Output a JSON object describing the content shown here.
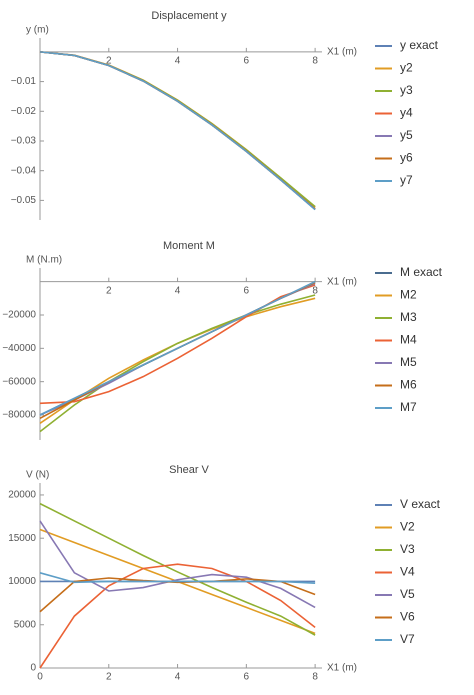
{
  "chart_data": [
    {
      "type": "line",
      "title": "Displacement y",
      "ylabel": "y (m)",
      "xlabel": "X1 (m)",
      "x": [
        0,
        1,
        2,
        3,
        4,
        5,
        6,
        7,
        8
      ],
      "xlim": [
        0,
        8.2
      ],
      "xticks": [
        2,
        4,
        6,
        8
      ],
      "ylim": [
        -0.0566,
        0.004
      ],
      "yticks": [
        {
          "value": -0.01,
          "label": "−0.01"
        },
        {
          "value": -0.02,
          "label": "−0.02"
        },
        {
          "value": -0.03,
          "label": "−0.03"
        },
        {
          "value": -0.04,
          "label": "−0.04"
        },
        {
          "value": -0.05,
          "label": "−0.05"
        }
      ],
      "series": [
        {
          "name": "y exact",
          "color": "#5E81B5",
          "values": [
            0,
            -0.0012,
            -0.0046,
            -0.0098,
            -0.0166,
            -0.0246,
            -0.0335,
            -0.0431,
            -0.053
          ]
        },
        {
          "name": "y2",
          "color": "#E19C24",
          "values": [
            0,
            -0.0011,
            -0.0044,
            -0.0095,
            -0.0162,
            -0.0241,
            -0.0329,
            -0.0425,
            -0.0524
          ]
        },
        {
          "name": "y3",
          "color": "#8FB032",
          "values": [
            0,
            -0.0012,
            -0.0045,
            -0.0096,
            -0.0163,
            -0.0242,
            -0.033,
            -0.0424,
            -0.0521
          ]
        },
        {
          "name": "y4",
          "color": "#EB6235",
          "values": [
            0,
            -0.0012,
            -0.0046,
            -0.0098,
            -0.0166,
            -0.0245,
            -0.0334,
            -0.043,
            -0.0529
          ]
        },
        {
          "name": "y5",
          "color": "#8778B3",
          "values": [
            0,
            -0.0012,
            -0.0046,
            -0.0098,
            -0.0166,
            -0.0246,
            -0.0335,
            -0.0431,
            -0.053
          ]
        },
        {
          "name": "y6",
          "color": "#C56E1A",
          "values": [
            0,
            -0.0012,
            -0.0046,
            -0.0098,
            -0.0166,
            -0.0246,
            -0.0335,
            -0.0431,
            -0.053
          ]
        },
        {
          "name": "y7",
          "color": "#5D9EC7",
          "values": [
            0,
            -0.0012,
            -0.0046,
            -0.0098,
            -0.0166,
            -0.0246,
            -0.0335,
            -0.0431,
            -0.0531
          ]
        }
      ]
    },
    {
      "type": "line",
      "title": "Moment M",
      "ylabel": "M (N.m)",
      "xlabel": "X1 (m)",
      "x": [
        0,
        1,
        2,
        3,
        4,
        5,
        6,
        7,
        8
      ],
      "xlim": [
        0,
        8.2
      ],
      "xticks": [
        2,
        4,
        6,
        8
      ],
      "ylim": [
        -95000,
        7000
      ],
      "yticks": [
        {
          "value": -20000,
          "label": "−20000"
        },
        {
          "value": -40000,
          "label": "−40000"
        },
        {
          "value": -60000,
          "label": "−60000"
        },
        {
          "value": -80000,
          "label": "−80000"
        }
      ],
      "series": [
        {
          "name": "M exact",
          "color": "#4A6C8F",
          "values": [
            -80000,
            -70000,
            -60000,
            -50000,
            -40000,
            -30000,
            -20000,
            -10000,
            0
          ]
        },
        {
          "name": "M2",
          "color": "#E19C24",
          "values": [
            -85000,
            -71000,
            -58000,
            -47000,
            -37000,
            -28500,
            -21000,
            -15000,
            -10000
          ]
        },
        {
          "name": "M3",
          "color": "#8FB032",
          "values": [
            -90000,
            -74000,
            -60000,
            -48000,
            -37000,
            -28000,
            -20000,
            -13500,
            -8000
          ]
        },
        {
          "name": "M4",
          "color": "#EB6235",
          "values": [
            -73000,
            -72000,
            -66000,
            -57000,
            -46000,
            -34000,
            -21000,
            -9000,
            -2000
          ]
        },
        {
          "name": "M5",
          "color": "#8778B3",
          "values": [
            -80000,
            -71000,
            -61000,
            -50000,
            -40000,
            -30000,
            -20000,
            -10000,
            -1000
          ]
        },
        {
          "name": "M6",
          "color": "#C56E1A",
          "values": [
            -82000,
            -71000,
            -60000,
            -50000,
            -40000,
            -30000,
            -20000,
            -10000,
            -500
          ]
        },
        {
          "name": "M7",
          "color": "#5D9EC7",
          "values": [
            -80000,
            -70000,
            -60000,
            -50000,
            -40000,
            -30000,
            -20000,
            -10000,
            0
          ]
        }
      ]
    },
    {
      "type": "line",
      "title": "Shear V",
      "ylabel": "V (N)",
      "xlabel": "X1 (m)",
      "x": [
        0,
        1,
        2,
        3,
        4,
        5,
        6,
        7,
        8
      ],
      "xlim": [
        0,
        8.2
      ],
      "xticks": [
        0,
        2,
        4,
        6,
        8
      ],
      "ylim": [
        0,
        21150
      ],
      "yticks": [
        0,
        5000,
        10000,
        15000,
        20000
      ],
      "series": [
        {
          "name": "V exact",
          "color": "#5E81B5",
          "values": [
            10000,
            10000,
            10000,
            10000,
            10000,
            10000,
            10000,
            10000,
            10000
          ]
        },
        {
          "name": "V2",
          "color": "#E19C24",
          "values": [
            16000,
            14500,
            13000,
            11500,
            10000,
            8500,
            7000,
            5500,
            4000
          ]
        },
        {
          "name": "V3",
          "color": "#8FB032",
          "values": [
            19000,
            17000,
            15000,
            13000,
            11100,
            9300,
            7600,
            6000,
            3800
          ]
        },
        {
          "name": "V4",
          "color": "#EB6235",
          "values": [
            0,
            6000,
            9500,
            11500,
            12000,
            11500,
            10000,
            7800,
            4700
          ]
        },
        {
          "name": "V5",
          "color": "#8778B3",
          "values": [
            17000,
            11000,
            8900,
            9300,
            10200,
            10800,
            10500,
            9200,
            7000
          ]
        },
        {
          "name": "V6",
          "color": "#C56E1A",
          "values": [
            6500,
            10000,
            10400,
            10100,
            9900,
            10000,
            10300,
            10000,
            8500
          ]
        },
        {
          "name": "V7",
          "color": "#5D9EC7",
          "values": [
            11000,
            9900,
            10000,
            10000,
            10000,
            10000,
            10000,
            10000,
            9800
          ]
        }
      ]
    }
  ]
}
